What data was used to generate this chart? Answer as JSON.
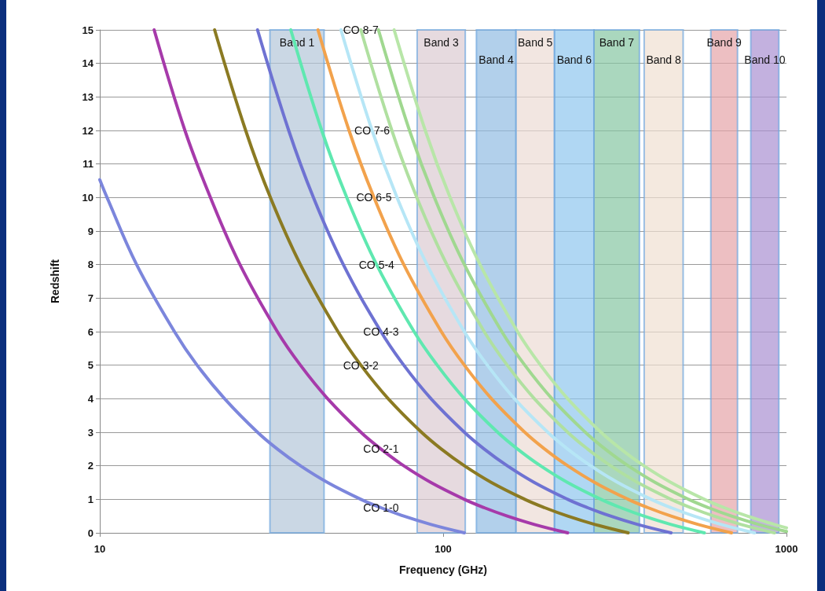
{
  "chart_data": {
    "type": "line",
    "xlabel": "Frequency (GHz)",
    "ylabel": "Redshift",
    "log": "x",
    "xlim": [
      10,
      1000
    ],
    "xticks": [
      10,
      100,
      1000
    ],
    "ylim": [
      0,
      15
    ],
    "yticks": [
      0,
      1,
      2,
      3,
      4,
      5,
      6,
      7,
      8,
      9,
      10,
      11,
      12,
      13,
      14,
      15
    ],
    "grid": "y",
    "legend": false,
    "marker": "none",
    "line_style": "solid",
    "series": [
      {
        "name": "CO 1-0",
        "color": "#7c86dc",
        "x": [
          10,
          10.5,
          12.8,
          16.5,
          19.2,
          23.1,
          28.8,
          32.9,
          38.4,
          46.1,
          57.6,
          65.9,
          76.8,
          92.2,
          115.3
        ],
        "values": [
          10.53,
          10,
          8,
          6,
          5,
          4,
          3,
          2.5,
          2,
          1.5,
          1,
          0.75,
          0.5,
          0.25,
          0
        ]
      },
      {
        "name": "CO 2-1",
        "color": "#a63aaa",
        "x": [
          14.4,
          17.7,
          21.0,
          25.6,
          32.9,
          38.4,
          46.1,
          57.6,
          65.9,
          76.8,
          92.2,
          115.3,
          131.7,
          153.7,
          184.4,
          230.5
        ],
        "values": [
          15,
          12,
          10,
          8,
          6,
          5,
          4,
          3,
          2.5,
          2,
          1.5,
          1,
          0.75,
          0.5,
          0.25,
          0
        ]
      },
      {
        "name": "CO 3-2",
        "color": "#8b7a22",
        "x": [
          21.6,
          26.6,
          31.4,
          38.4,
          49.4,
          57.6,
          69.2,
          86.5,
          98.8,
          115.3,
          138.3,
          172.9,
          197.6,
          230.5,
          276.7,
          345.8
        ],
        "values": [
          15,
          12,
          10,
          8,
          6,
          5,
          4,
          3,
          2.5,
          2,
          1.5,
          1,
          0.75,
          0.5,
          0.25,
          0
        ]
      },
      {
        "name": "CO 4-3",
        "color": "#6e72d2",
        "x": [
          28.8,
          35.5,
          41.9,
          51.2,
          65.9,
          76.8,
          92.2,
          115.3,
          131.7,
          153.7,
          184.4,
          230.5,
          263.5,
          307.4,
          368.9,
          461.1
        ],
        "values": [
          15,
          12,
          10,
          8,
          6,
          5,
          4,
          3,
          2.5,
          2,
          1.5,
          1,
          0.75,
          0.5,
          0.25,
          0
        ]
      },
      {
        "name": "CO 5-4",
        "color": "#5fe8b0",
        "x": [
          36.0,
          44.3,
          52.4,
          64.0,
          82.3,
          96.1,
          115.3,
          144.1,
          164.7,
          192.1,
          230.5,
          288.2,
          329.3,
          384.2,
          461.1,
          576.4
        ],
        "values": [
          15,
          12,
          10,
          8,
          6,
          5,
          4,
          3,
          2.5,
          2,
          1.5,
          1,
          0.75,
          0.5,
          0.25,
          0
        ]
      },
      {
        "name": "CO 6-5",
        "color": "#f2a24c",
        "x": [
          43.2,
          53.2,
          62.9,
          76.8,
          98.8,
          115.3,
          138.3,
          172.9,
          197.6,
          230.5,
          276.6,
          345.8,
          395.2,
          461.1,
          553.3,
          691.6
        ],
        "values": [
          15,
          12,
          10,
          8,
          6,
          5,
          4,
          3,
          2.5,
          2,
          1.5,
          1,
          0.75,
          0.5,
          0.25,
          0
        ]
      },
      {
        "name": "CO 7-6",
        "color": "#b6e6f6",
        "x": [
          50.4,
          62.1,
          73.4,
          89.7,
          115.3,
          134.5,
          161.4,
          201.7,
          230.5,
          269.0,
          322.8,
          403.5,
          461.1,
          537.9,
          645.5,
          806.9
        ],
        "values": [
          15,
          12,
          10,
          8,
          6,
          5,
          4,
          3,
          2.5,
          2,
          1.5,
          1,
          0.75,
          0.5,
          0.25,
          0
        ]
      },
      {
        "name": "CO 8-7",
        "color": "#b0e0a0",
        "x": [
          57.6,
          70.9,
          83.8,
          102.5,
          131.7,
          153.7,
          184.4,
          230.5,
          263.5,
          307.4,
          368.9,
          461.1,
          527.0,
          614.8,
          737.7,
          922.2
        ],
        "values": [
          15,
          12,
          10,
          8,
          6,
          5,
          4,
          3,
          2.5,
          2,
          1.5,
          1,
          0.75,
          0.5,
          0.25,
          0
        ]
      },
      {
        "color": "#a0d890",
        "x": [
          64.8,
          79.8,
          94.3,
          115.3,
          148.2,
          172.9,
          207.5,
          259.4,
          296.4,
          345.8,
          415.0,
          518.7,
          592.8,
          691.6,
          830.0,
          1000
        ],
        "values": [
          15,
          12,
          10,
          8,
          6,
          5,
          4,
          3,
          2.5,
          2,
          1.5,
          1,
          0.75,
          0.5,
          0.25,
          0.04
        ]
      },
      {
        "color": "#b8e6a8",
        "x": [
          72.0,
          88.7,
          104.8,
          128.1,
          164.7,
          192.1,
          230.5,
          288.2,
          329.3,
          384.2,
          461.1,
          576.4,
          658.7,
          768.5,
          922.2,
          1000
        ],
        "values": [
          15,
          12,
          10,
          8,
          6,
          5,
          4,
          3,
          2.5,
          2,
          1.5,
          1,
          0.75,
          0.5,
          0.25,
          0.15
        ]
      }
    ],
    "bands": [
      {
        "axis": "x",
        "from": 31.3,
        "to": 45,
        "label": "Band 1",
        "color": "#b4c6d8"
      },
      {
        "axis": "x",
        "from": 84,
        "to": 116,
        "label": "Band 3",
        "color": "#dccbd2"
      },
      {
        "axis": "x",
        "from": 125,
        "to": 163,
        "label": "Band 4",
        "color": "#92bce2"
      },
      {
        "axis": "x",
        "from": 163,
        "to": 211,
        "label": "Band 5",
        "color": "#ecdcd4"
      },
      {
        "axis": "x",
        "from": 211,
        "to": 275,
        "label": "Band 6",
        "color": "#8ec6ee"
      },
      {
        "axis": "x",
        "from": 275,
        "to": 373,
        "label": "Band 7",
        "color": "#86c6a2"
      },
      {
        "axis": "x",
        "from": 385,
        "to": 500,
        "label": "Band 8",
        "color": "#f0e0d2"
      },
      {
        "axis": "x",
        "from": 602,
        "to": 720,
        "label": "Band 9",
        "color": "#e6a4a8"
      },
      {
        "axis": "x",
        "from": 787,
        "to": 950,
        "label": "Band 10",
        "color": "#aa90d2"
      }
    ]
  }
}
